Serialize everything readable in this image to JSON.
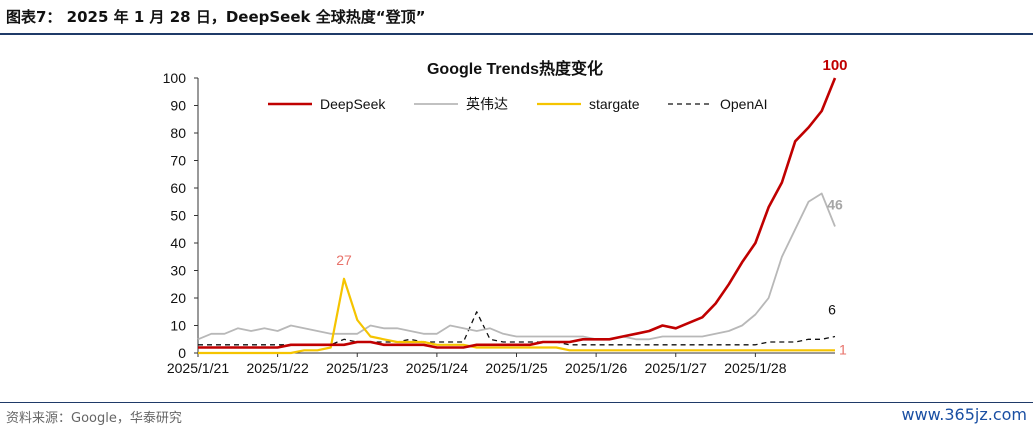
{
  "figure": {
    "title": "图表7： 2025 年 1 月 28 日，DeepSeek 全球热度“登顶”",
    "source": "资料来源：Google，华泰研究",
    "watermark": "www.365jz.com"
  },
  "chart_data": {
    "type": "line",
    "title": "Google Trends热度变化",
    "xlabel": "",
    "ylabel": "",
    "ylim": [
      0,
      100
    ],
    "yticks": [
      0,
      10,
      20,
      30,
      40,
      50,
      60,
      70,
      80,
      90,
      100
    ],
    "x_tick_labels": [
      "2025/1/21",
      "2025/1/22",
      "2025/1/23",
      "2025/1/24",
      "2025/1/25",
      "2025/1/26",
      "2025/1/27",
      "2025/1/28"
    ],
    "x_hours": [
      0,
      4,
      8,
      12,
      16,
      20,
      24,
      28,
      32,
      36,
      40,
      44,
      48,
      52,
      56,
      60,
      64,
      68,
      72,
      76,
      80,
      84,
      88,
      92,
      96,
      100,
      104,
      108,
      112,
      116,
      120,
      124,
      128,
      132,
      136,
      140,
      144,
      148,
      152,
      156,
      160,
      164,
      168,
      172,
      176,
      180,
      184,
      188,
      192
    ],
    "legend_position": "top",
    "annotations": [
      {
        "text": "27",
        "series": 2,
        "index": 11,
        "color": "#e8726a"
      },
      {
        "text": "100",
        "series": 0,
        "index": 48,
        "color": "#c00000"
      },
      {
        "text": "46",
        "series": 1,
        "index": 48,
        "color": "#a6a6a6"
      },
      {
        "text": "6",
        "series": 3,
        "index": 48,
        "color": "#111111"
      },
      {
        "text": "1",
        "series": 2,
        "index": 48,
        "color": "#e8726a"
      }
    ],
    "series": [
      {
        "name": "DeepSeek",
        "color": "#c00000",
        "dash": "",
        "width": 2.6,
        "values": [
          2,
          2,
          2,
          2,
          2,
          2,
          2,
          3,
          3,
          3,
          3,
          3,
          4,
          4,
          3,
          3,
          3,
          3,
          2,
          2,
          2,
          3,
          3,
          3,
          3,
          3,
          4,
          4,
          4,
          5,
          5,
          5,
          6,
          7,
          8,
          10,
          9,
          11,
          13,
          18,
          25,
          33,
          40,
          53,
          62,
          77,
          82,
          88,
          100
        ]
      },
      {
        "name": "英伟达",
        "color": "#b8b8b8",
        "dash": "",
        "width": 1.8,
        "values": [
          5,
          7,
          7,
          9,
          8,
          9,
          8,
          10,
          9,
          8,
          7,
          7,
          7,
          10,
          9,
          9,
          8,
          7,
          7,
          10,
          9,
          8,
          9,
          7,
          6,
          6,
          6,
          6,
          6,
          6,
          5,
          5,
          6,
          5,
          5,
          6,
          6,
          6,
          6,
          7,
          8,
          10,
          14,
          20,
          35,
          45,
          55,
          58,
          46
        ]
      },
      {
        "name": "stargate",
        "color": "#f5c400",
        "dash": "",
        "width": 2.2,
        "values": [
          0,
          0,
          0,
          0,
          0,
          0,
          0,
          0,
          1,
          1,
          2,
          27,
          12,
          6,
          5,
          4,
          4,
          4,
          3,
          3,
          3,
          2,
          2,
          2,
          2,
          2,
          2,
          2,
          1,
          1,
          1,
          1,
          1,
          1,
          1,
          1,
          1,
          1,
          1,
          1,
          1,
          1,
          1,
          1,
          1,
          1,
          1,
          1,
          1
        ]
      },
      {
        "name": "OpenAI",
        "color": "#111111",
        "dash": "5,4",
        "width": 1.3,
        "values": [
          3,
          3,
          3,
          3,
          3,
          3,
          3,
          3,
          3,
          3,
          3,
          5,
          4,
          4,
          4,
          4,
          5,
          4,
          4,
          4,
          4,
          15,
          5,
          4,
          4,
          4,
          4,
          4,
          3,
          3,
          3,
          3,
          3,
          3,
          3,
          3,
          3,
          3,
          3,
          3,
          3,
          3,
          3,
          4,
          4,
          4,
          5,
          5,
          6
        ]
      }
    ]
  }
}
